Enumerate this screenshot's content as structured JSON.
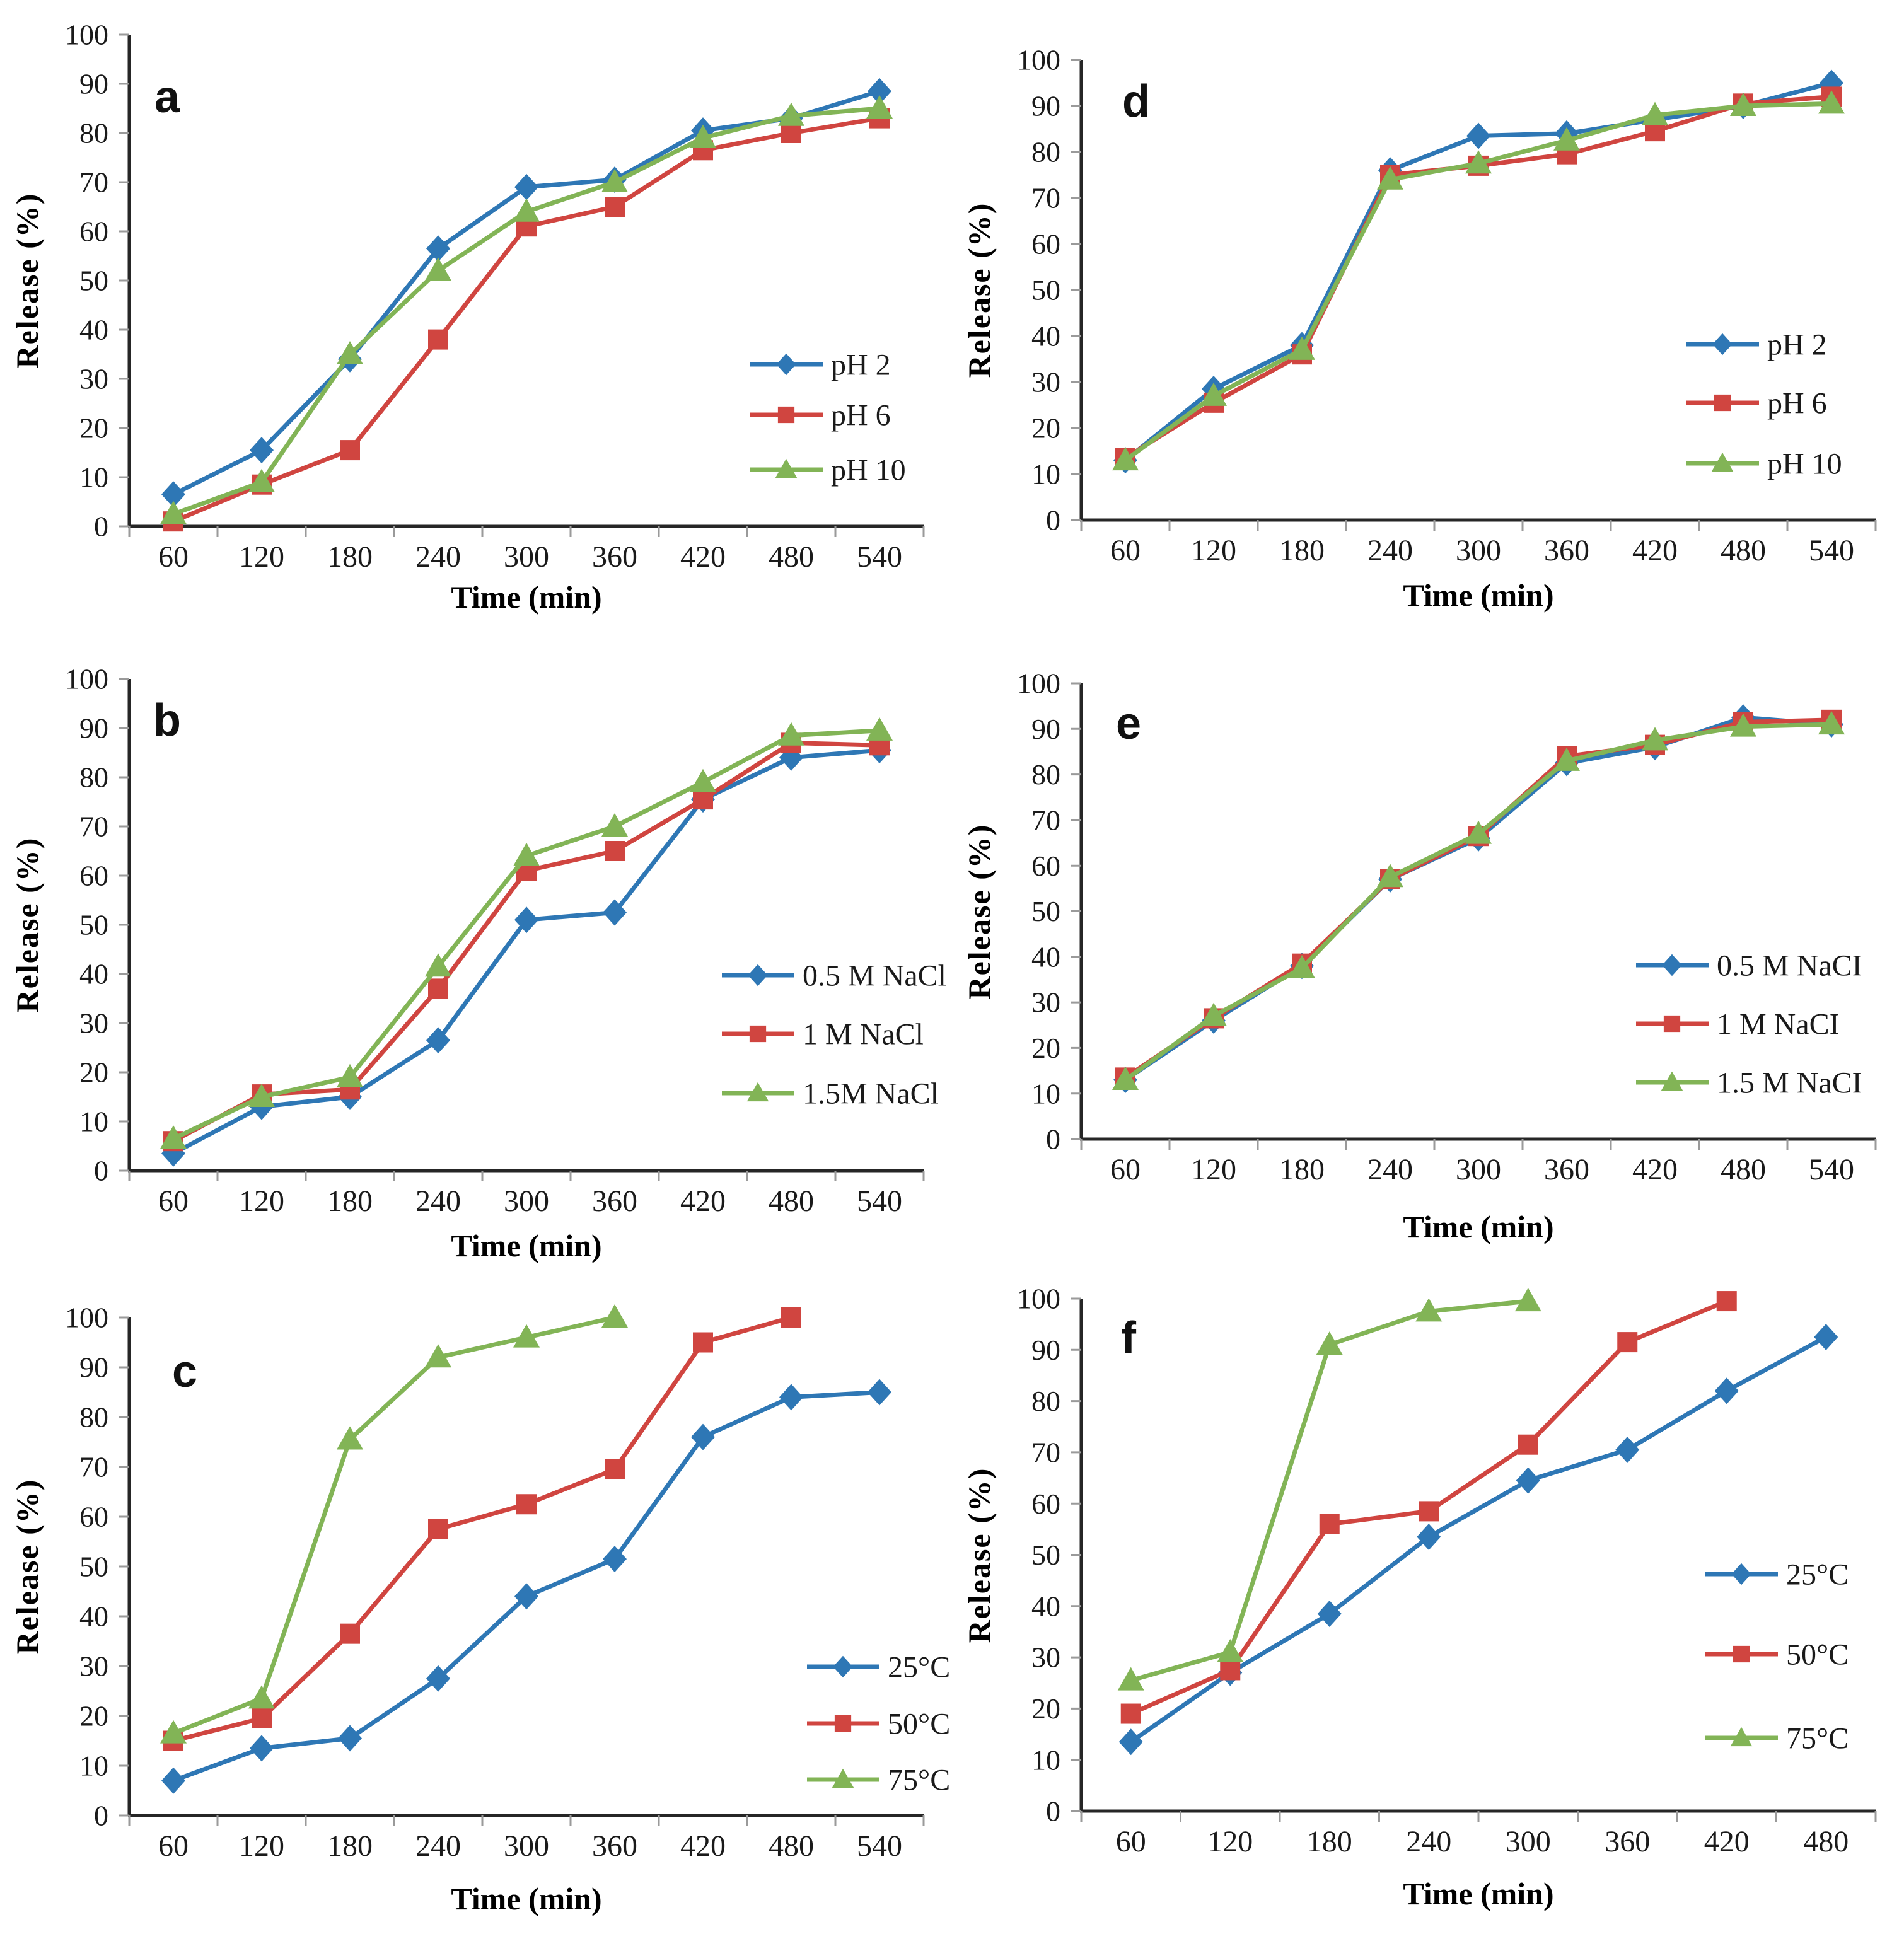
{
  "figure": {
    "background": "#ffffff",
    "ylabel": "Release (%)",
    "xlabel": "Time (min)"
  },
  "colors": {
    "blue": "#2e77b5",
    "red": "#d04540",
    "green": "#82b456",
    "axis": "#262626",
    "tick": "#9a9a9a",
    "text": "#1a1a1a"
  },
  "chart_data": [
    {
      "id": "a",
      "panel_label": "a",
      "type": "line",
      "xlabel": "Time (min)",
      "ylabel": "Release (%)",
      "categories": [
        60,
        120,
        180,
        240,
        300,
        360,
        420,
        480,
        540
      ],
      "y_ticks": [
        0,
        10,
        20,
        30,
        40,
        50,
        60,
        70,
        80,
        90,
        100
      ],
      "ylim": [
        0,
        100
      ],
      "legend_position": "right-inside",
      "series": [
        {
          "name": "pH 2",
          "color": "blue",
          "marker": "diamond",
          "values": [
            6.5,
            15.5,
            34,
            56.5,
            69,
            70.5,
            80.5,
            83,
            88.5
          ]
        },
        {
          "name": "pH 6",
          "color": "red",
          "marker": "square",
          "values": [
            1,
            8.5,
            15.5,
            38,
            61,
            65,
            76.5,
            80,
            83
          ]
        },
        {
          "name": "pH 10",
          "color": "green",
          "marker": "triangle",
          "values": [
            2.5,
            9,
            35,
            52,
            64,
            70,
            79,
            83.5,
            85
          ]
        }
      ]
    },
    {
      "id": "d",
      "panel_label": "d",
      "type": "line",
      "xlabel": "Time (min)",
      "ylabel": "Release (%)",
      "categories": [
        60,
        120,
        180,
        240,
        300,
        360,
        420,
        480,
        540
      ],
      "y_ticks": [
        0,
        10,
        20,
        30,
        40,
        50,
        60,
        70,
        80,
        90,
        100
      ],
      "ylim": [
        0,
        100
      ],
      "legend_position": "right-inside",
      "series": [
        {
          "name": "pH 2",
          "color": "blue",
          "marker": "diamond",
          "values": [
            13,
            28.5,
            38,
            76,
            83.5,
            84,
            87,
            90,
            95
          ]
        },
        {
          "name": "pH 6",
          "color": "red",
          "marker": "square",
          "values": [
            13.5,
            25.5,
            36,
            75,
            77,
            79.5,
            84.5,
            90.5,
            92
          ]
        },
        {
          "name": "pH 10",
          "color": "green",
          "marker": "triangle",
          "values": [
            13,
            27,
            37,
            74,
            77.5,
            82.5,
            88,
            90,
            90.5
          ]
        }
      ]
    },
    {
      "id": "b",
      "panel_label": "b",
      "type": "line",
      "xlabel": "Time (min)",
      "ylabel": "Release (%)",
      "categories": [
        60,
        120,
        180,
        240,
        300,
        360,
        420,
        480,
        540
      ],
      "y_ticks": [
        0,
        10,
        20,
        30,
        40,
        50,
        60,
        70,
        80,
        90,
        100
      ],
      "ylim": [
        0,
        100
      ],
      "legend_position": "right-inside",
      "series": [
        {
          "name": "0.5 M NaCl",
          "color": "blue",
          "marker": "diamond",
          "values": [
            3.5,
            13,
            15,
            26.5,
            51,
            52.5,
            75.5,
            84,
            85.5
          ]
        },
        {
          "name": "1 M NaCl",
          "color": "red",
          "marker": "square",
          "values": [
            6,
            15.5,
            16.5,
            37,
            61,
            65,
            75.5,
            87,
            86.5
          ]
        },
        {
          "name": "1.5M NaCl",
          "color": "green",
          "marker": "triangle",
          "values": [
            6.5,
            15,
            19,
            41.5,
            64,
            70,
            79,
            88.5,
            89.5
          ]
        }
      ]
    },
    {
      "id": "e",
      "panel_label": "e",
      "type": "line",
      "xlabel": "Time (min)",
      "ylabel": "Release (%)",
      "categories": [
        60,
        120,
        180,
        240,
        300,
        360,
        420,
        480,
        540
      ],
      "y_ticks": [
        0,
        10,
        20,
        30,
        40,
        50,
        60,
        70,
        80,
        90,
        100
      ],
      "ylim": [
        0,
        100
      ],
      "legend_position": "right-inside",
      "series": [
        {
          "name": "0.5 M NaCI",
          "color": "blue",
          "marker": "diamond",
          "values": [
            13,
            26,
            38,
            57,
            66,
            82.5,
            86,
            92.5,
            91
          ]
        },
        {
          "name": "1 M NaCI",
          "color": "red",
          "marker": "square",
          "values": [
            13.5,
            26.5,
            38.5,
            57,
            66.5,
            84,
            86.5,
            91.5,
            92
          ]
        },
        {
          "name": "1.5 M NaCI",
          "color": "green",
          "marker": "triangle",
          "values": [
            13,
            27,
            37.5,
            57.5,
            67,
            83,
            87.5,
            90.5,
            91
          ]
        }
      ]
    },
    {
      "id": "c",
      "panel_label": "c",
      "type": "line",
      "xlabel": "Time (min)",
      "ylabel": "Release (%)",
      "categories": [
        60,
        120,
        180,
        240,
        300,
        360,
        420,
        480,
        540
      ],
      "y_ticks": [
        0,
        10,
        20,
        30,
        40,
        50,
        60,
        70,
        80,
        90,
        100
      ],
      "ylim": [
        0,
        100
      ],
      "legend_position": "right-inside",
      "series": [
        {
          "name": "25°C",
          "color": "blue",
          "marker": "diamond",
          "values": [
            7,
            13.5,
            15.5,
            27.5,
            44,
            51.5,
            76,
            84,
            85
          ]
        },
        {
          "name": "50°C",
          "color": "red",
          "marker": "square",
          "values": [
            15,
            19.5,
            36.5,
            57.5,
            62.5,
            69.5,
            95,
            100,
            null
          ]
        },
        {
          "name": "75°C",
          "color": "green",
          "marker": "triangle",
          "values": [
            16.5,
            23.5,
            75.5,
            92,
            96,
            100,
            null,
            null,
            null
          ]
        }
      ]
    },
    {
      "id": "f",
      "panel_label": "f",
      "type": "line",
      "xlabel": "Time (min)",
      "ylabel": "Release (%)",
      "categories": [
        60,
        120,
        180,
        240,
        300,
        360,
        420,
        480
      ],
      "y_ticks": [
        0,
        10,
        20,
        30,
        40,
        50,
        60,
        70,
        80,
        90,
        100
      ],
      "ylim": [
        0,
        100
      ],
      "legend_position": "right-inside",
      "series": [
        {
          "name": "25°C",
          "color": "blue",
          "marker": "diamond",
          "values": [
            13.5,
            27,
            38.5,
            53.5,
            64.5,
            70.5,
            82,
            92.5
          ]
        },
        {
          "name": "50°C",
          "color": "red",
          "marker": "square",
          "values": [
            19,
            27.5,
            56,
            58.5,
            71.5,
            91.5,
            99.5,
            null
          ]
        },
        {
          "name": "75°C",
          "color": "green",
          "marker": "triangle",
          "values": [
            25.5,
            31,
            91,
            97.5,
            99.5,
            null,
            null,
            null
          ]
        }
      ]
    }
  ]
}
